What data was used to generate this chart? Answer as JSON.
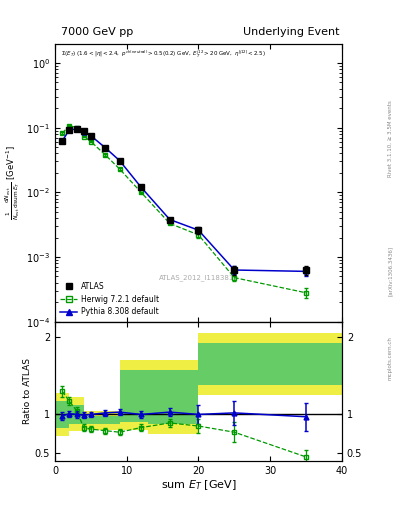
{
  "title_left": "7000 GeV pp",
  "title_right": "Underlying Event",
  "annotation": "ATLAS_2012_I1183818",
  "rivet_text": "Rivet 3.1.10, ≥ 3.5M events",
  "arxiv_text": "[arXiv:1306.3436]",
  "mcplots_text": "mcplots.cern.ch",
  "ylabel_ratio": "Ratio to ATLAS",
  "xlabel": "sum E_T [GeV]",
  "atlas_x": [
    1,
    2,
    3,
    4,
    5,
    7,
    9,
    12,
    16,
    20,
    25,
    35
  ],
  "atlas_y": [
    0.063,
    0.092,
    0.095,
    0.088,
    0.075,
    0.048,
    0.03,
    0.012,
    0.0037,
    0.0026,
    0.00062,
    0.00062
  ],
  "atlas_yerr": [
    0.004,
    0.003,
    0.003,
    0.003,
    0.003,
    0.002,
    0.001,
    0.0005,
    0.0002,
    0.0003,
    0.0001,
    0.0001
  ],
  "herwig_x": [
    1,
    2,
    3,
    4,
    5,
    7,
    9,
    12,
    16,
    20,
    25,
    35
  ],
  "herwig_y": [
    0.082,
    0.108,
    0.1,
    0.073,
    0.061,
    0.038,
    0.023,
    0.01,
    0.0033,
    0.0022,
    0.00048,
    0.00028
  ],
  "herwig_yerr": [
    0.003,
    0.003,
    0.003,
    0.002,
    0.002,
    0.001,
    0.001,
    0.0003,
    0.0001,
    0.0002,
    6e-05,
    5e-05
  ],
  "pythia_x": [
    1,
    2,
    3,
    4,
    5,
    7,
    9,
    12,
    16,
    20,
    25,
    35
  ],
  "pythia_y": [
    0.062,
    0.093,
    0.095,
    0.087,
    0.075,
    0.049,
    0.031,
    0.012,
    0.0038,
    0.0026,
    0.00063,
    0.0006
  ],
  "pythia_yerr": [
    0.003,
    0.003,
    0.003,
    0.003,
    0.002,
    0.002,
    0.001,
    0.0004,
    0.0002,
    0.0002,
    9e-05,
    9e-05
  ],
  "herwig_ratio": [
    1.3,
    1.17,
    1.05,
    0.83,
    0.81,
    0.79,
    0.77,
    0.83,
    0.89,
    0.85,
    0.77,
    0.45
  ],
  "herwig_ratio_err": [
    0.07,
    0.05,
    0.04,
    0.04,
    0.04,
    0.04,
    0.04,
    0.04,
    0.05,
    0.09,
    0.13,
    0.09
  ],
  "pythia_ratio": [
    0.98,
    1.01,
    1.0,
    0.99,
    1.0,
    1.02,
    1.03,
    1.0,
    1.03,
    1.0,
    1.02,
    0.97
  ],
  "pythia_ratio_err": [
    0.05,
    0.04,
    0.04,
    0.04,
    0.03,
    0.04,
    0.04,
    0.04,
    0.05,
    0.12,
    0.16,
    0.18
  ],
  "band_edges": [
    0,
    2,
    4,
    6,
    9,
    13,
    20,
    27,
    40
  ],
  "yellow_lo": [
    0.72,
    0.78,
    0.8,
    0.8,
    0.8,
    0.75,
    1.25,
    1.25,
    1.25
  ],
  "yellow_hi": [
    1.28,
    1.22,
    1.05,
    1.05,
    1.7,
    1.7,
    2.05,
    2.05,
    2.05
  ],
  "green_lo": [
    0.82,
    0.87,
    0.88,
    0.88,
    0.9,
    0.88,
    1.38,
    1.38,
    1.38
  ],
  "green_hi": [
    1.18,
    1.12,
    0.98,
    0.98,
    1.58,
    1.58,
    1.92,
    1.92,
    1.92
  ],
  "atlas_color": "#000000",
  "herwig_color": "#009900",
  "pythia_color": "#0000cc",
  "yellow_color": "#eeee44",
  "green_color": "#66cc66",
  "xlim": [
    0,
    40
  ],
  "ylim_main": [
    0.0001,
    2.0
  ],
  "ylim_ratio": [
    0.4,
    2.2
  ],
  "ratio_yticks": [
    0.5,
    1.0,
    2.0
  ],
  "ratio_yticklabels": [
    "0.5",
    "1",
    "2"
  ]
}
